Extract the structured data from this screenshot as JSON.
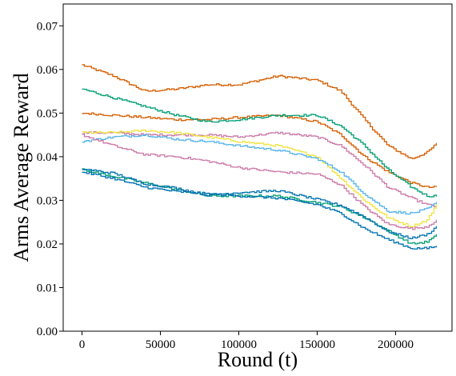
{
  "chart_data": {
    "type": "line",
    "title": "",
    "xlabel": "Round (t)",
    "ylabel": "Arms Average Reward",
    "xlim": [
      -12000,
      236000
    ],
    "ylim": [
      0.0,
      0.075
    ],
    "xticks": [
      0,
      50000,
      100000,
      150000,
      200000
    ],
    "xtick_labels": [
      "0",
      "50000",
      "100000",
      "150000",
      "200000"
    ],
    "yticks": [
      0.0,
      0.01,
      0.02,
      0.03,
      0.04,
      0.05,
      0.06,
      0.07
    ],
    "ytick_labels": [
      "0.00",
      "0.01",
      "0.02",
      "0.03",
      "0.04",
      "0.05",
      "0.06",
      "0.07"
    ],
    "grid": false,
    "legend": "none",
    "step": true,
    "series": [
      {
        "color": "#d55e00",
        "x": [
          0,
          20000,
          40000,
          60000,
          80000,
          100000,
          125000,
          150000,
          165000,
          180000,
          195000,
          210000,
          220000,
          226000
        ],
        "y": [
          0.061,
          0.0585,
          0.055,
          0.0555,
          0.0565,
          0.0565,
          0.0585,
          0.0575,
          0.055,
          0.0485,
          0.0425,
          0.0395,
          0.041,
          0.043
        ]
      },
      {
        "color": "#d55e00",
        "x": [
          0,
          20000,
          40000,
          60000,
          80000,
          100000,
          125000,
          150000,
          165000,
          180000,
          195000,
          210000,
          220000,
          226000
        ],
        "y": [
          0.05,
          0.0495,
          0.049,
          0.0485,
          0.0485,
          0.049,
          0.0495,
          0.048,
          0.045,
          0.04,
          0.0365,
          0.034,
          0.033,
          0.033
        ]
      },
      {
        "color": "#009e73",
        "x": [
          0,
          20000,
          40000,
          60000,
          80000,
          100000,
          125000,
          150000,
          165000,
          180000,
          195000,
          210000,
          220000,
          226000
        ],
        "y": [
          0.0555,
          0.0535,
          0.0515,
          0.0495,
          0.048,
          0.0485,
          0.0495,
          0.0495,
          0.047,
          0.0425,
          0.037,
          0.033,
          0.031,
          0.031
        ]
      },
      {
        "color": "#cc79a7",
        "x": [
          0,
          20000,
          40000,
          60000,
          80000,
          100000,
          125000,
          150000,
          165000,
          180000,
          195000,
          210000,
          220000,
          226000
        ],
        "y": [
          0.0455,
          0.0455,
          0.045,
          0.045,
          0.045,
          0.0445,
          0.0455,
          0.0445,
          0.0425,
          0.038,
          0.033,
          0.0305,
          0.029,
          0.0285
        ]
      },
      {
        "color": "#f0e442",
        "x": [
          0,
          20000,
          40000,
          60000,
          80000,
          100000,
          125000,
          150000,
          165000,
          180000,
          195000,
          210000,
          220000,
          226000
        ],
        "y": [
          0.0455,
          0.0455,
          0.046,
          0.0455,
          0.0445,
          0.0435,
          0.0425,
          0.04,
          0.035,
          0.03,
          0.026,
          0.024,
          0.0255,
          0.029
        ]
      },
      {
        "color": "#56b4e9",
        "x": [
          0,
          20000,
          40000,
          60000,
          80000,
          100000,
          125000,
          150000,
          165000,
          180000,
          195000,
          210000,
          220000,
          226000
        ],
        "y": [
          0.0435,
          0.0445,
          0.045,
          0.044,
          0.0435,
          0.0425,
          0.0415,
          0.0395,
          0.0365,
          0.0315,
          0.0275,
          0.027,
          0.028,
          0.0295
        ]
      },
      {
        "color": "#cc79a7",
        "x": [
          0,
          20000,
          40000,
          60000,
          80000,
          100000,
          125000,
          150000,
          165000,
          180000,
          195000,
          210000,
          220000,
          226000
        ],
        "y": [
          0.045,
          0.0425,
          0.0405,
          0.04,
          0.039,
          0.0375,
          0.0365,
          0.036,
          0.0335,
          0.0285,
          0.0245,
          0.0235,
          0.024,
          0.0255
        ]
      },
      {
        "color": "#009e73",
        "x": [
          0,
          20000,
          40000,
          60000,
          80000,
          100000,
          125000,
          150000,
          165000,
          180000,
          195000,
          210000,
          220000,
          226000
        ],
        "y": [
          0.037,
          0.0355,
          0.034,
          0.0325,
          0.031,
          0.031,
          0.031,
          0.0295,
          0.0285,
          0.026,
          0.023,
          0.02,
          0.0205,
          0.022
        ]
      },
      {
        "color": "#0072b2",
        "x": [
          0,
          20000,
          40000,
          60000,
          80000,
          100000,
          125000,
          150000,
          165000,
          180000,
          195000,
          210000,
          220000,
          226000
        ],
        "y": [
          0.0372,
          0.0362,
          0.0338,
          0.0328,
          0.0312,
          0.0318,
          0.0322,
          0.0302,
          0.0288,
          0.0262,
          0.0228,
          0.0213,
          0.0222,
          0.024
        ]
      },
      {
        "color": "#0072b2",
        "x": [
          0,
          20000,
          40000,
          60000,
          80000,
          100000,
          125000,
          150000,
          165000,
          180000,
          195000,
          210000,
          220000,
          226000
        ],
        "y": [
          0.0365,
          0.035,
          0.033,
          0.032,
          0.0315,
          0.031,
          0.0305,
          0.029,
          0.027,
          0.0235,
          0.021,
          0.019,
          0.019,
          0.0195
        ]
      }
    ]
  }
}
